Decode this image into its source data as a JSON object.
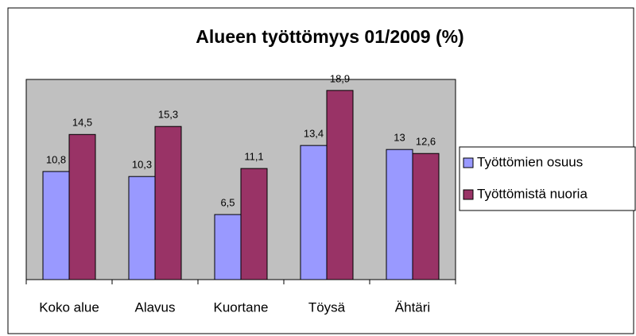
{
  "chart_data": {
    "type": "bar",
    "title": "Alueen työttömyys 01/2009 (%)",
    "categories": [
      "Koko alue",
      "Alavus",
      "Kuortane",
      "Töysä",
      "Ähtäri"
    ],
    "series": [
      {
        "name": "Työttömien osuus",
        "color": "#9999ff",
        "values": [
          10.8,
          10.3,
          6.5,
          13.4,
          13
        ],
        "value_labels": [
          "10,8",
          "10,3",
          "6,5",
          "13,4",
          "13"
        ]
      },
      {
        "name": "Työttömistä nuoria",
        "color": "#993366",
        "values": [
          14.5,
          15.3,
          11.1,
          18.9,
          12.6
        ],
        "value_labels": [
          "14,5",
          "15,3",
          "11,1",
          "18,9",
          "12,6"
        ]
      }
    ],
    "ylim": [
      0,
      20
    ],
    "plot_background": "#c0c0c0",
    "legend": "right"
  }
}
